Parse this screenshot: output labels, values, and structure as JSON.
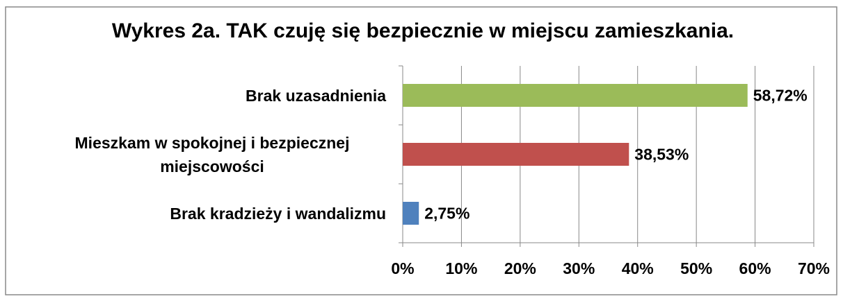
{
  "chart_data": {
    "type": "bar",
    "orientation": "horizontal",
    "title": "Wykres 2a. TAK czuję się bezpiecznie w miejscu zamieszkania.",
    "categories": [
      "Brak uzasadnienia",
      "Mieszkam w spokojnej i bezpiecznej miejscowości",
      "Brak kradzieży i wandalizmu"
    ],
    "values": [
      58.72,
      38.53,
      2.75
    ],
    "value_labels": [
      "58,72%",
      "38,53%",
      "2,75%"
    ],
    "colors": [
      "#9bbb59",
      "#c0504d",
      "#4f81bd"
    ],
    "xlim": [
      0,
      70
    ],
    "xticks": [
      {
        "value": 0,
        "label": "0%"
      },
      {
        "value": 10,
        "label": "10%"
      },
      {
        "value": 20,
        "label": "20%"
      },
      {
        "value": 30,
        "label": "30%"
      },
      {
        "value": 40,
        "label": "40%"
      },
      {
        "value": 50,
        "label": "50%"
      },
      {
        "value": 60,
        "label": "60%"
      },
      {
        "value": 70,
        "label": "70%"
      }
    ],
    "grid": true
  }
}
